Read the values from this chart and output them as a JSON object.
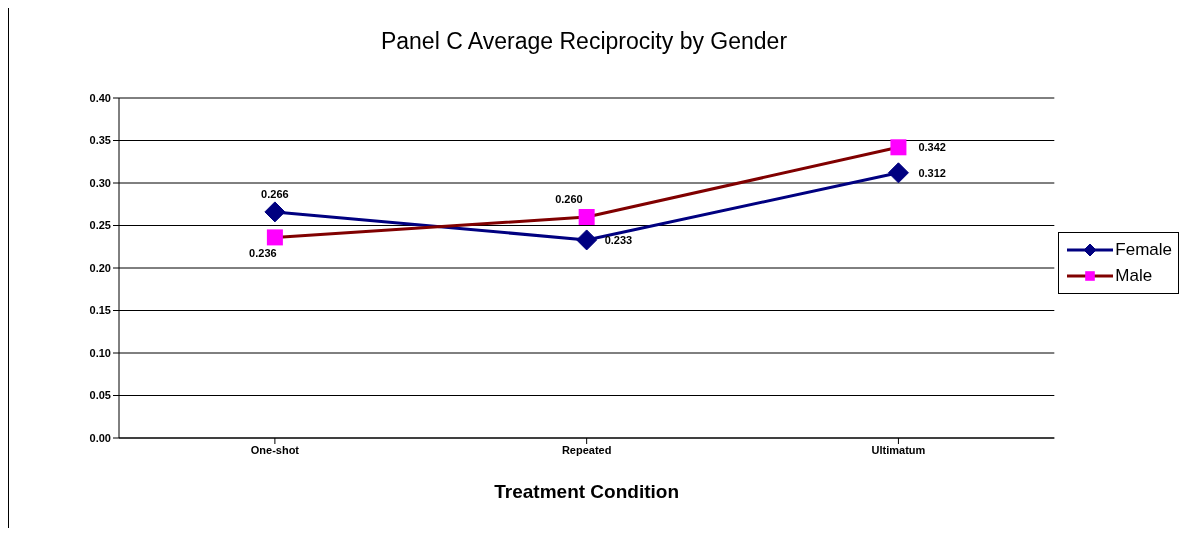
{
  "chart_data": {
    "type": "line",
    "title": "Panel C Average Reciprocity by Gender",
    "xlabel": "Treatment Condition",
    "categories": [
      "One-shot",
      "Repeated",
      "Ultimatum"
    ],
    "series": [
      {
        "name": "Female",
        "color": "#000080",
        "marker": "diamond",
        "values": [
          0.266,
          0.233,
          0.312
        ],
        "value_labels": [
          "0.266",
          "0.233",
          "0.312"
        ]
      },
      {
        "name": "Male",
        "color": "#800000",
        "colors": [
          "#ff00ff",
          "#ff00ff",
          "#ff00ff"
        ],
        "marker": "square",
        "values": [
          0.236,
          0.26,
          0.342
        ],
        "value_labels": [
          "0.236",
          "0.260",
          "0.342"
        ]
      }
    ],
    "ylim": [
      0,
      0.4
    ],
    "yticks": [
      {
        "value": 0,
        "label": "0.00"
      },
      {
        "value": 0.05,
        "label": "0.05"
      },
      {
        "value": 0.1,
        "label": "0.10"
      },
      {
        "value": 0.15,
        "label": "0.15"
      },
      {
        "value": 0.2,
        "label": "0.20"
      },
      {
        "value": 0.25,
        "label": "0.25"
      },
      {
        "value": 0.3,
        "label": "0.30"
      },
      {
        "value": 0.35,
        "label": "0.35"
      },
      {
        "value": 0.4,
        "label": "0.40"
      }
    ],
    "grid": "y",
    "legend": "right"
  }
}
